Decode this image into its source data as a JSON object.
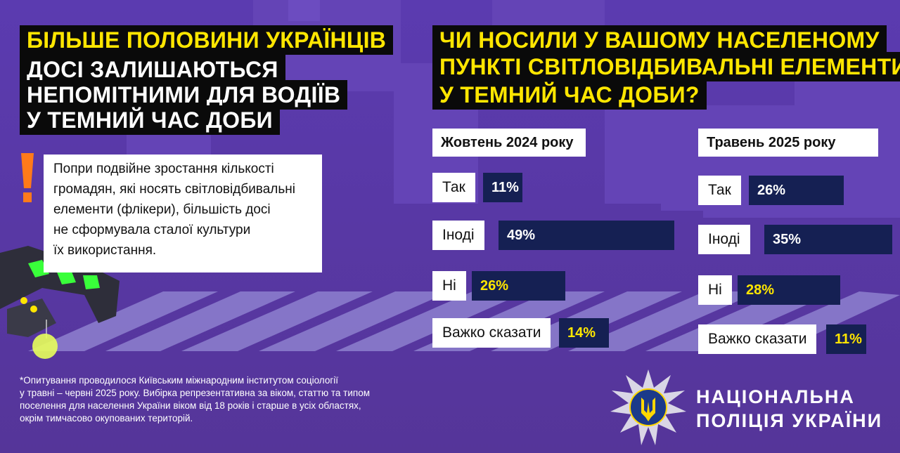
{
  "left_headline": {
    "lines": [
      "БІЛЬШЕ ПОЛОВИНИ УКРАЇНЦІВ",
      "ДОСІ ЗАЛИШАЮТЬСЯ",
      "НЕПОМІТНИМИ ДЛЯ ВОДІЇВ",
      "У ТЕМНИЙ ЧАС ДОБИ"
    ]
  },
  "note": {
    "lines": [
      "Попри подвійне зростання кількості",
      "громадян, які носять світловідбивальні",
      "елементи (флікери), більшість досі",
      "не сформувала сталої культури",
      "їх використання."
    ],
    "accent_color": "#ff7a1a"
  },
  "question": {
    "lines": [
      "ЧИ НОСИЛИ У ВАШОМУ НАСЕЛЕНОМУ",
      "ПУНКТІ СВІТЛОВІДБИВАЛЬНІ ЕЛЕМЕНТИ",
      "У ТЕМНИЙ ЧАС ДОБИ?"
    ]
  },
  "footnote": {
    "lines": [
      "*Опитування проводилося Київським міжнародним інститутом соціології",
      "у травні – червні 2025 року. Вибірка репрезентативна за віком, статтю та типом",
      "поселення для населення України віком від 18 років і старше в усіх областях,",
      "окрім тимчасово окупованих територій."
    ]
  },
  "brand": {
    "lines": [
      "НАЦІОНАЛЬНА",
      "ПОЛІЦІЯ УКРАЇНИ"
    ]
  },
  "colors": {
    "background": "#5a38a8",
    "bar": "#152053",
    "headline_yellow": "#ffe600",
    "label_bg": "#ffffff"
  },
  "chart_data": [
    {
      "type": "bar",
      "title": "Жовтень 2024 року",
      "categories": [
        "Так",
        "Іноді",
        "Ні",
        "Важко сказати"
      ],
      "values": [
        11,
        49,
        26,
        14
      ],
      "value_labels": [
        "11%",
        "49%",
        "26%",
        "14%"
      ],
      "unit": "%"
    },
    {
      "type": "bar",
      "title": "Травень 2025 року",
      "categories": [
        "Так",
        "Іноді",
        "Ні",
        "Важко сказати"
      ],
      "values": [
        26,
        35,
        28,
        11
      ],
      "value_labels": [
        "26%",
        "35%",
        "28%",
        "11%"
      ],
      "unit": "%"
    }
  ]
}
